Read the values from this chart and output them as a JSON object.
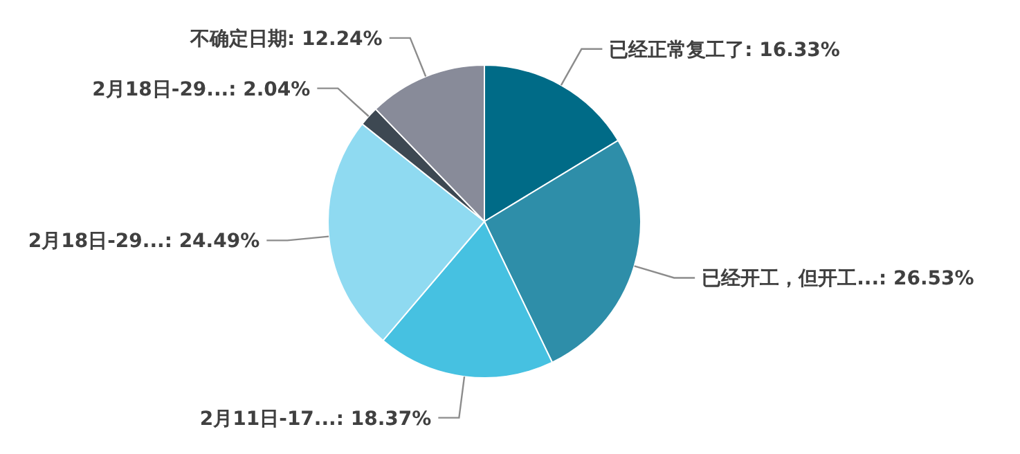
{
  "chart_data": {
    "type": "pie",
    "categories": [
      "已经正常复工了",
      "已经开工，但开工...",
      "2月11日-17...",
      "2月18日-29...",
      "2月18日-29...",
      "不确定日期"
    ],
    "values": [
      16.33,
      26.53,
      18.37,
      24.49,
      2.04,
      12.24
    ],
    "colors": [
      "#006b87",
      "#2e8ea9",
      "#46c1e1",
      "#8fdaf1",
      "#3d4852",
      "#888b99"
    ],
    "value_labels": [
      "16.33%",
      "26.53%",
      "18.37%",
      "24.49%",
      "2.04%",
      "12.24%"
    ]
  }
}
